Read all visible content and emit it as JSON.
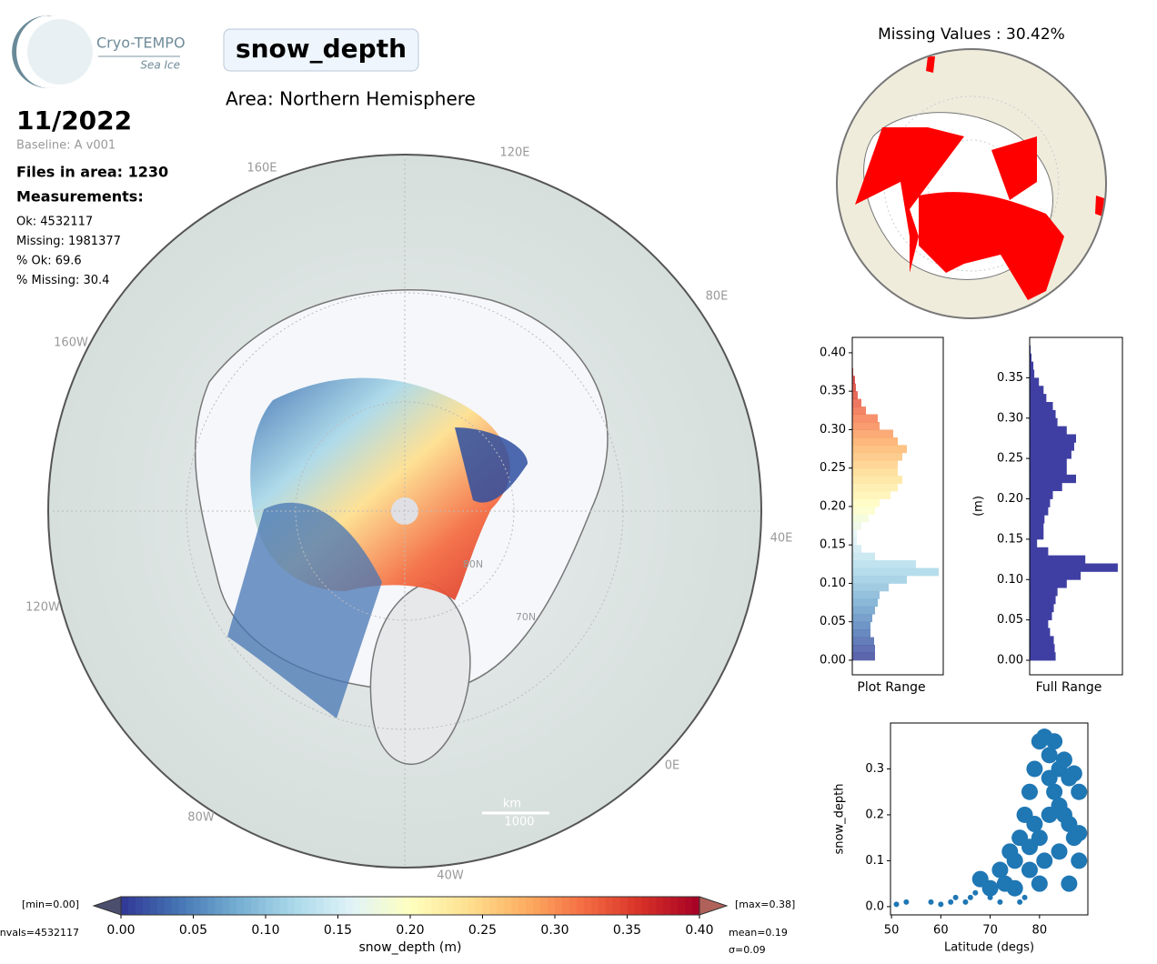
{
  "header": {
    "logo_title": "Cryo-TEMPO",
    "logo_subtitle": "Sea Ice",
    "variable": "snow_depth",
    "area": "Area: Northern Hemisphere",
    "date": "11/2022",
    "baseline": "Baseline: A v001",
    "files": "Files in area: 1230",
    "measurements_title": "Measurements:",
    "stats": [
      "Ok: 4532117",
      "Missing: 1981377",
      "% Ok: 69.6",
      "% Missing: 30.4"
    ]
  },
  "map": {
    "lon_labels": [
      "160E",
      "120E",
      "80E",
      "40E",
      "0E",
      "40W",
      "80W",
      "120W",
      "160W"
    ],
    "lat_labels": [
      "80N",
      "70N"
    ],
    "scale_unit": "km",
    "scale_value": "1000"
  },
  "missing_map": {
    "title": "Missing Values : 30.42%"
  },
  "chart_data": [
    {
      "type": "colorbar",
      "xlabel": "snow_depth (m)",
      "xlim": [
        0,
        0.4
      ],
      "xticks": [
        {
          "value": 0,
          "label": "0.00"
        },
        0.05,
        {
          "value": 0.1,
          "label": "0.10"
        },
        0.15,
        {
          "value": 0.2,
          "label": "0.20"
        },
        0.25,
        {
          "value": 0.3,
          "label": "0.30"
        },
        0.35,
        {
          "value": 0.4,
          "label": "0.40"
        }
      ],
      "colors": [
        "#313695",
        "#4575b4",
        "#74add1",
        "#abd9e9",
        "#e0f3f8",
        "#ffffbf",
        "#fee090",
        "#fdae61",
        "#f46d43",
        "#d73027",
        "#a50026"
      ],
      "under_color": "#4b4e6d",
      "over_color": "#b0625a",
      "annotations": {
        "min": "[min=0.00]",
        "max": "[max=0.38]",
        "nvals": "nvals=4532117",
        "mean": "mean=0.19",
        "sigma": "σ=0.09"
      }
    },
    {
      "type": "histogram",
      "xlabel": "Plot Range",
      "colormap": true,
      "bins": [
        0,
        0.01,
        0.02,
        0.03,
        0.04,
        0.05,
        0.06,
        0.07,
        0.08,
        0.09,
        0.1,
        0.11,
        0.12,
        0.13,
        0.14,
        0.15,
        0.16,
        0.17,
        0.18,
        0.19,
        0.2,
        0.21,
        0.22,
        0.23,
        0.24,
        0.25,
        0.26,
        0.27,
        0.28,
        0.29,
        0.3,
        0.31,
        0.32,
        0.33,
        0.34,
        0.35,
        0.36,
        0.37,
        0.38
      ],
      "values": [
        25,
        25,
        24,
        20,
        20,
        22,
        25,
        28,
        30,
        40,
        60,
        95,
        70,
        25,
        10,
        5,
        5,
        10,
        18,
        25,
        30,
        42,
        50,
        55,
        50,
        50,
        55,
        60,
        50,
        45,
        30,
        28,
        15,
        10,
        6,
        4,
        3,
        1
      ],
      "xlim": [
        0,
        100
      ],
      "ylim": [
        -0.019,
        0.42
      ],
      "yticks": [
        {
          "value": 0,
          "label": "0.00"
        },
        0.05,
        {
          "value": 0.1,
          "label": "0.10"
        },
        0.15,
        {
          "value": 0.2,
          "label": "0.20"
        },
        0.25,
        {
          "value": 0.3,
          "label": "0.30"
        },
        0.35,
        {
          "value": 0.4,
          "label": "0.40"
        }
      ]
    },
    {
      "type": "histogram",
      "xlabel": "Full Range",
      "ylabel": "(m)",
      "color": "#3f3fa3",
      "bins": [
        0,
        0.01,
        0.02,
        0.03,
        0.04,
        0.05,
        0.06,
        0.07,
        0.08,
        0.09,
        0.1,
        0.11,
        0.12,
        0.13,
        0.14,
        0.15,
        0.16,
        0.17,
        0.18,
        0.19,
        0.2,
        0.21,
        0.22,
        0.23,
        0.24,
        0.25,
        0.26,
        0.27,
        0.28,
        0.29,
        0.3,
        0.31,
        0.32,
        0.33,
        0.34,
        0.35,
        0.36,
        0.37,
        0.38,
        0.39
      ],
      "values": [
        28,
        27,
        26,
        22,
        20,
        24,
        26,
        28,
        30,
        40,
        55,
        95,
        60,
        20,
        8,
        15,
        15,
        16,
        20,
        22,
        25,
        35,
        50,
        40,
        40,
        45,
        48,
        50,
        40,
        30,
        28,
        25,
        18,
        15,
        10,
        5,
        4,
        2,
        1
      ],
      "xlim": [
        0,
        100
      ],
      "ylim": [
        -0.018,
        0.4
      ],
      "yticks": [
        {
          "value": 0,
          "label": "0.00"
        },
        0.05,
        {
          "value": 0.1,
          "label": "0.10"
        },
        0.15,
        {
          "value": 0.2,
          "label": "0.20"
        },
        0.25,
        {
          "value": 0.3,
          "label": "0.30"
        },
        0.35
      ]
    },
    {
      "type": "scatter",
      "xlabel": "Latitude (degs)",
      "ylabel": "snow_depth",
      "color": "#1f77b4",
      "x": [
        51,
        53,
        58,
        60,
        63,
        65,
        67,
        68,
        70,
        72,
        73,
        74,
        75,
        76,
        77,
        78,
        78,
        79,
        80,
        80,
        81,
        82,
        83,
        84,
        85,
        86,
        87,
        88,
        88,
        86,
        84,
        82,
        80,
        76,
        72,
        85,
        87,
        83,
        79,
        81,
        78,
        84,
        86,
        88,
        82,
        75,
        70,
        66,
        62,
        77
      ],
      "values": [
        0.005,
        0.01,
        0.01,
        0.005,
        0.02,
        0.01,
        0.03,
        0.06,
        0.02,
        0.08,
        0.05,
        0.12,
        0.1,
        0.15,
        0.2,
        0.08,
        0.25,
        0.3,
        0.36,
        0.15,
        0.37,
        0.33,
        0.36,
        0.3,
        0.32,
        0.28,
        0.29,
        0.25,
        0.1,
        0.05,
        0.12,
        0.2,
        0.05,
        0.01,
        0.01,
        0.2,
        0.15,
        0.25,
        0.18,
        0.1,
        0.13,
        0.22,
        0.18,
        0.16,
        0.28,
        0.04,
        0.04,
        0.02,
        0.01,
        0.02
      ],
      "xlim": [
        49.8,
        89.8
      ],
      "ylim": [
        -0.018,
        0.4
      ],
      "xticks": [
        50,
        60,
        70,
        80
      ],
      "yticks": [
        {
          "value": 0,
          "label": "0.0"
        },
        0.1,
        0.2,
        0.3
      ]
    }
  ]
}
